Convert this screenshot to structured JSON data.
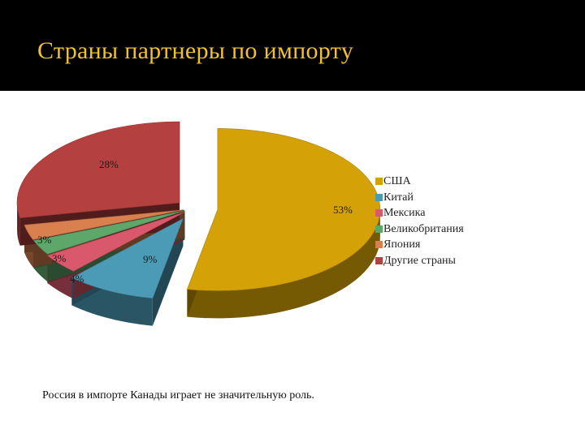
{
  "slide": {
    "title": "Страны партнеры по импорту",
    "footnote": "Россия в импорте Канады играет не значительную роль."
  },
  "chart_data": {
    "type": "pie",
    "style": "3d exploded",
    "categories": [
      "США",
      "Китай",
      "Мексика",
      "Великобритания",
      "Япония",
      "Другие страны"
    ],
    "values": [
      53,
      9,
      4,
      3,
      3,
      28
    ],
    "data_labels": [
      "53%",
      "9%",
      "4%",
      "3%",
      "3%",
      "28%"
    ],
    "colors": [
      "#D4A106",
      "#4B9BB6",
      "#D9586B",
      "#5DA76B",
      "#D9804E",
      "#B4403F"
    ],
    "legend_placement": "right"
  }
}
